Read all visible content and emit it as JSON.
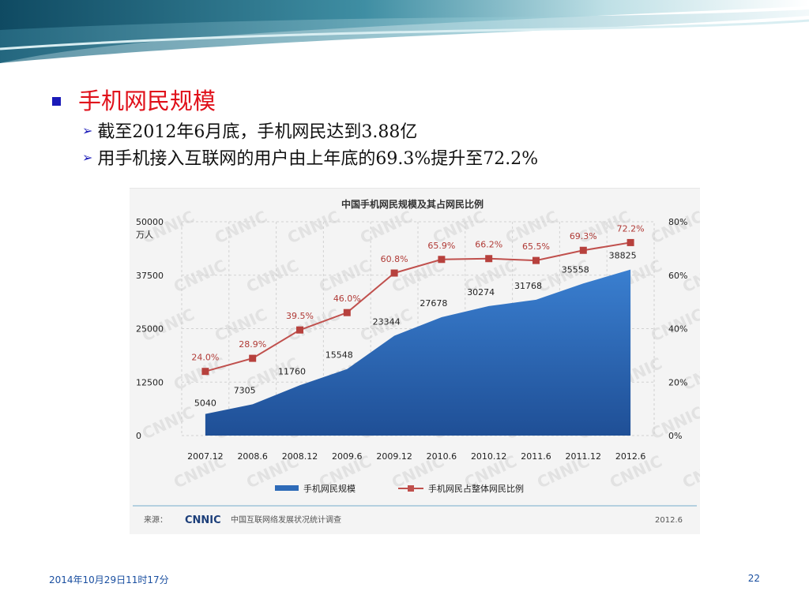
{
  "slide": {
    "bullet_title": "手机网民规模",
    "sub_bullets": [
      "截至2012年6月底，手机网民达到3.88亿",
      "用手机接入互联网的用户由上年底的69.3%提升至72.2%"
    ],
    "footer_date": "2014年10月29日11时17分",
    "page_number": "22",
    "colors": {
      "title": "#e0101a",
      "bullet": "#1a1ab8",
      "area": "#2e6bb8",
      "line": "#c0504d"
    }
  },
  "chart_data": {
    "type": "area",
    "title": "中国手机网民规模及其占网民比例",
    "categories": [
      "2007.12",
      "2008.6",
      "2008.12",
      "2009.6",
      "2009.12",
      "2010.6",
      "2010.12",
      "2011.6",
      "2011.12",
      "2012.6"
    ],
    "left_axis": {
      "unit": "万人",
      "ticks": [
        "50000",
        "37500",
        "25000",
        "12500",
        "0"
      ],
      "range": [
        0,
        50000
      ]
    },
    "right_axis": {
      "ticks": [
        "80%",
        "60%",
        "40%",
        "20%",
        "0%"
      ],
      "range": [
        0,
        80
      ]
    },
    "series": [
      {
        "name": "手机网民规模",
        "type": "area",
        "axis": "left",
        "values": [
          5040,
          7305,
          11760,
          15548,
          23344,
          27678,
          30274,
          31768,
          35558,
          38825
        ],
        "labels": [
          "5040",
          "7305",
          "11760",
          "15548",
          "23344",
          "27678",
          "30274",
          "31768",
          "35558",
          "38825"
        ]
      },
      {
        "name": "手机网民占整体网民比例",
        "type": "line",
        "axis": "right",
        "values": [
          24.0,
          28.9,
          39.5,
          46.0,
          60.8,
          65.9,
          66.2,
          65.5,
          69.3,
          72.2
        ],
        "labels": [
          "24.0%",
          "28.9%",
          "39.5%",
          "46.0%",
          "60.8%",
          "65.9%",
          "66.2%",
          "65.5%",
          "69.3%",
          "72.2%"
        ]
      }
    ],
    "legend": {
      "placement": "bottom"
    },
    "source_label": "来源：",
    "source_logo": "CNNIC",
    "source_text": "中国互联网络发展状况统计调查",
    "source_date": "2012.6",
    "watermark": "CNNIC",
    "grid": true
  }
}
